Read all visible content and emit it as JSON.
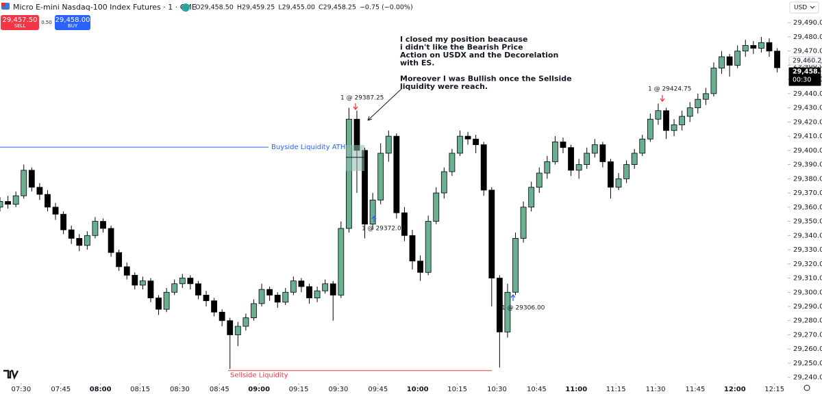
{
  "header": {
    "symbol": "Micro E-mini Nasdaq-100 Index Futures · 1 · CME",
    "ohlc": [
      "O29,458.50",
      "H29,459.25",
      "L29,455.00",
      "C29,458.25",
      "−0.75 (−0.00%)"
    ],
    "sell_price": "29,457.50",
    "sell": "SELL",
    "spread": "0.50",
    "buy_price": "29,458.00",
    "buy": "BUY",
    "currency": "USD"
  },
  "chart_data": {
    "type": "candlestick",
    "up_color": "#6aaf92",
    "down_color": "#000000",
    "grid": false,
    "xlim": [
      "07:22",
      "12:20"
    ],
    "xticks": [
      "07:30",
      "07:45",
      "08:00",
      "08:15",
      "08:30",
      "08:45",
      "09:00",
      "09:15",
      "09:30",
      "09:45",
      "10:00",
      "10:15",
      "10:30",
      "10:45",
      "11:00",
      "11:15",
      "11:30",
      "11:45",
      "12:00",
      "12:15"
    ],
    "ylim": [
      29236,
      29506
    ],
    "yticks": [
      {
        "value": 29240,
        "label": "29,240.00"
      },
      {
        "value": 29250,
        "label": "29,250.00"
      },
      {
        "value": 29260,
        "label": "29,260.00"
      },
      {
        "value": 29270,
        "label": "29,270.00"
      },
      {
        "value": 29280,
        "label": "29,280.00"
      },
      {
        "value": 29290,
        "label": "29,290.00"
      },
      {
        "value": 29300,
        "label": "29,300.00"
      },
      {
        "value": 29310,
        "label": "29,310.00"
      },
      {
        "value": 29320,
        "label": "29,320.00"
      },
      {
        "value": 29330,
        "label": "29,330.00"
      },
      {
        "value": 29340,
        "label": "29,340.00"
      },
      {
        "value": 29350,
        "label": "29,350.00"
      },
      {
        "value": 29360,
        "label": "29,360.00"
      },
      {
        "value": 29370,
        "label": "29,370.00"
      },
      {
        "value": 29380,
        "label": "29,380.00"
      },
      {
        "value": 29390,
        "label": "29,390.00"
      },
      {
        "value": 29400,
        "label": "29,400.00"
      },
      {
        "value": 29410,
        "label": "29,410.00"
      },
      {
        "value": 29420,
        "label": "29,420.00"
      },
      {
        "value": 29430,
        "label": "29,430.00"
      },
      {
        "value": 29440,
        "label": "29,440.00"
      },
      {
        "value": 29450,
        "label": "29,450.00"
      },
      {
        "value": 29460,
        "label": "29,460.00"
      },
      {
        "value": 29470,
        "label": "29,470.00"
      },
      {
        "value": 29480,
        "label": "29,480.00"
      },
      {
        "value": 29490,
        "label": "29,490.00"
      }
    ],
    "x": [
      "07:22",
      "07:25",
      "07:28",
      "07:31",
      "07:34",
      "07:37",
      "07:40",
      "07:43",
      "07:46",
      "07:49",
      "07:52",
      "07:55",
      "07:58",
      "08:01",
      "08:04",
      "08:07",
      "08:10",
      "08:13",
      "08:16",
      "08:19",
      "08:22",
      "08:25",
      "08:28",
      "08:31",
      "08:34",
      "08:37",
      "08:40",
      "08:43",
      "08:46",
      "08:49",
      "08:52",
      "08:55",
      "08:58",
      "09:01",
      "09:04",
      "09:07",
      "09:10",
      "09:13",
      "09:16",
      "09:19",
      "09:22",
      "09:25",
      "09:28",
      "09:31",
      "09:34",
      "09:37",
      "09:40",
      "09:43",
      "09:46",
      "09:49",
      "09:52",
      "09:55",
      "09:58",
      "10:01",
      "10:04",
      "10:07",
      "10:10",
      "10:13",
      "10:16",
      "10:19",
      "10:22",
      "10:25",
      "10:28",
      "10:31",
      "10:34",
      "10:37",
      "10:40",
      "10:43",
      "10:46",
      "10:49",
      "10:52",
      "10:55",
      "10:58",
      "11:01",
      "11:04",
      "11:07",
      "11:10",
      "11:13",
      "11:16",
      "11:19",
      "11:22",
      "11:25",
      "11:28",
      "11:31",
      "11:34",
      "11:37",
      "11:40",
      "11:43",
      "11:46",
      "11:49",
      "11:52",
      "11:55",
      "11:58",
      "12:01",
      "12:04",
      "12:07",
      "12:10",
      "12:13",
      "12:16"
    ],
    "open": [
      29360,
      29364,
      29362,
      29368,
      29386,
      29374,
      29369,
      29360,
      29355,
      29344,
      29338,
      29333,
      29340,
      29350,
      29345,
      29328,
      29318,
      29312,
      29305,
      29308,
      29296,
      29288,
      29300,
      29306,
      29310,
      29306,
      29298,
      29294,
      29286,
      29280,
      29270,
      29276,
      29282,
      29292,
      29302,
      29298,
      29293,
      29300,
      29308,
      29304,
      29296,
      29301,
      29306,
      29298,
      29345,
      29422,
      29400,
      29348,
      29365,
      29398,
      29410,
      29356,
      29340,
      29322,
      29314,
      29350,
      29370,
      29385,
      29398,
      29410,
      29408,
      29404,
      29372,
      29310,
      29272,
      29300,
      29338,
      29360,
      29374,
      29384,
      29392,
      29406,
      29402,
      29386,
      29390,
      29398,
      29404,
      29392,
      29374,
      29380,
      29390,
      29398,
      29408,
      29422,
      29428,
      29414,
      29418,
      29424,
      29430,
      29436,
      29440,
      29458,
      29466,
      29460,
      29470,
      29474,
      29472,
      29476,
      29470
    ],
    "high": [
      29367,
      29368,
      29371,
      29390,
      29388,
      29377,
      29372,
      29363,
      29357,
      29347,
      29341,
      29343,
      29353,
      29352,
      29347,
      29330,
      29321,
      29314,
      29311,
      29310,
      29298,
      29303,
      29309,
      29313,
      29312,
      29308,
      29301,
      29296,
      29288,
      29282,
      29279,
      29285,
      29295,
      29306,
      29304,
      29300,
      29303,
      29311,
      29310,
      29306,
      29304,
      29309,
      29308,
      29350,
      29430,
      29428,
      29402,
      29370,
      29405,
      29414,
      29412,
      29360,
      29344,
      29326,
      29354,
      29374,
      29388,
      29401,
      29414,
      29413,
      29411,
      29406,
      29374,
      29312,
      29306,
      29342,
      29364,
      29378,
      29388,
      29396,
      29410,
      29409,
      29404,
      29394,
      29402,
      29408,
      29406,
      29394,
      29384,
      29393,
      29401,
      29411,
      29426,
      29433,
      29430,
      29422,
      29428,
      29434,
      29440,
      29444,
      29462,
      29470,
      29468,
      29474,
      29478,
      29477,
      29480,
      29479,
      29472
    ],
    "low": [
      29357,
      29359,
      29360,
      29366,
      29371,
      29365,
      29357,
      29351,
      29341,
      29334,
      29329,
      29330,
      29338,
      29342,
      29325,
      29315,
      29309,
      29302,
      29302,
      29293,
      29284,
      29286,
      29298,
      29303,
      29302,
      29295,
      29290,
      29283,
      29276,
      29246,
      29262,
      29273,
      29280,
      29290,
      29294,
      29289,
      29291,
      29298,
      29300,
      29292,
      29293,
      29299,
      29280,
      29296,
      29342,
      29370,
      29338,
      29344,
      29362,
      29392,
      29352,
      29336,
      29316,
      29308,
      29312,
      29348,
      29366,
      29382,
      29396,
      29404,
      29398,
      29368,
      29290,
      29247,
      29268,
      29298,
      29335,
      29357,
      29370,
      29380,
      29390,
      29398,
      29382,
      29380,
      29387,
      29395,
      29388,
      29366,
      29372,
      29377,
      29387,
      29396,
      29406,
      29418,
      29408,
      29410,
      29414,
      29420,
      29426,
      29432,
      29438,
      29454,
      29452,
      29458,
      29466,
      29468,
      29469,
      29466,
      29455
    ],
    "close": [
      29364,
      29362,
      29368,
      29386,
      29374,
      29369,
      29360,
      29355,
      29344,
      29338,
      29333,
      29340,
      29350,
      29345,
      29328,
      29318,
      29312,
      29305,
      29308,
      29296,
      29288,
      29300,
      29306,
      29310,
      29306,
      29298,
      29294,
      29286,
      29280,
      29270,
      29276,
      29282,
      29292,
      29302,
      29298,
      29293,
      29300,
      29308,
      29304,
      29296,
      29301,
      29306,
      29298,
      29345,
      29422,
      29400,
      29348,
      29365,
      29398,
      29410,
      29356,
      29340,
      29322,
      29314,
      29350,
      29370,
      29385,
      29398,
      29410,
      29408,
      29404,
      29372,
      29310,
      29272,
      29300,
      29338,
      29360,
      29374,
      29384,
      29392,
      29406,
      29402,
      29386,
      29390,
      29398,
      29404,
      29392,
      29374,
      29380,
      29390,
      29398,
      29408,
      29422,
      29428,
      29414,
      29418,
      29424,
      29430,
      29436,
      29440,
      29458,
      29466,
      29460,
      29470,
      29474,
      29472,
      29476,
      29470,
      29458.25
    ],
    "levels": [
      {
        "label": "Buyside Liquidity ATH",
        "value": 29402.3,
        "color": "#2962ff"
      },
      {
        "label": "Sellside Liquidity",
        "value": 29244.8,
        "color": "#f23645"
      }
    ],
    "price_tags": [
      {
        "value": 29460.25,
        "label": "29,460.25"
      },
      {
        "value": 29458.25,
        "label": "29,458.25",
        "countdown": "00:30"
      }
    ],
    "trades": [
      "1 @ 29387.25",
      "1 @ 29372.00",
      "1 @ 29306.00",
      "1 @ 29424.75"
    ],
    "note": [
      [
        "I closed my position beacause",
        "i didn't like the Bearish Price",
        "Action on USDX and the Decorelation",
        "with ES."
      ],
      [
        "Moreover I was Bullish once the Sellside",
        "liquidity were reach."
      ]
    ]
  }
}
